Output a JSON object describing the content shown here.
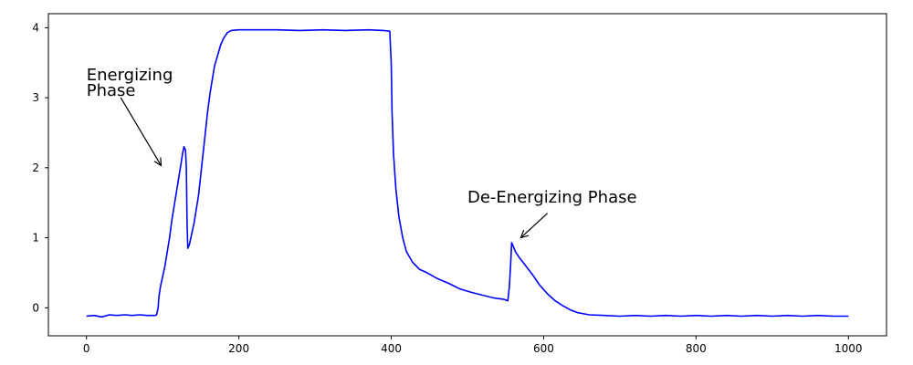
{
  "chart_data": {
    "type": "line",
    "title": "",
    "xlabel": "",
    "ylabel": "",
    "xlim": [
      -50,
      1050
    ],
    "ylim": [
      -0.4,
      4.2
    ],
    "x_ticks": [
      0,
      200,
      400,
      600,
      800,
      1000
    ],
    "x_tick_labels": [
      "0",
      "200",
      "400",
      "600",
      "800",
      "1000"
    ],
    "y_ticks": [
      0,
      1,
      2,
      3,
      4
    ],
    "y_tick_labels": [
      "0",
      "1",
      "2",
      "3",
      "4"
    ],
    "grid": false,
    "series": [
      {
        "color": "#0000ff",
        "points": [
          [
            0,
            -0.12
          ],
          [
            10,
            -0.11
          ],
          [
            20,
            -0.13
          ],
          [
            30,
            -0.1
          ],
          [
            40,
            -0.11
          ],
          [
            50,
            -0.1
          ],
          [
            60,
            -0.11
          ],
          [
            70,
            -0.1
          ],
          [
            80,
            -0.11
          ],
          [
            90,
            -0.11
          ],
          [
            92,
            -0.1
          ],
          [
            94,
            0.0
          ],
          [
            95,
            0.15
          ],
          [
            97,
            0.3
          ],
          [
            100,
            0.45
          ],
          [
            103,
            0.6
          ],
          [
            106,
            0.8
          ],
          [
            109,
            1.0
          ],
          [
            112,
            1.25
          ],
          [
            115,
            1.45
          ],
          [
            118,
            1.65
          ],
          [
            121,
            1.85
          ],
          [
            124,
            2.05
          ],
          [
            126,
            2.2
          ],
          [
            128,
            2.3
          ],
          [
            130,
            2.25
          ],
          [
            131,
            2.0
          ],
          [
            132,
            1.2
          ],
          [
            133,
            0.85
          ],
          [
            135,
            0.9
          ],
          [
            138,
            1.05
          ],
          [
            141,
            1.2
          ],
          [
            144,
            1.4
          ],
          [
            147,
            1.6
          ],
          [
            150,
            1.9
          ],
          [
            153,
            2.2
          ],
          [
            156,
            2.5
          ],
          [
            159,
            2.8
          ],
          [
            162,
            3.05
          ],
          [
            165,
            3.25
          ],
          [
            168,
            3.45
          ],
          [
            172,
            3.6
          ],
          [
            176,
            3.75
          ],
          [
            180,
            3.85
          ],
          [
            185,
            3.93
          ],
          [
            190,
            3.96
          ],
          [
            200,
            3.97
          ],
          [
            220,
            3.97
          ],
          [
            250,
            3.97
          ],
          [
            280,
            3.96
          ],
          [
            310,
            3.97
          ],
          [
            340,
            3.96
          ],
          [
            370,
            3.97
          ],
          [
            390,
            3.96
          ],
          [
            398,
            3.95
          ],
          [
            400,
            3.5
          ],
          [
            401,
            2.8
          ],
          [
            403,
            2.2
          ],
          [
            406,
            1.7
          ],
          [
            410,
            1.3
          ],
          [
            415,
            1.0
          ],
          [
            420,
            0.8
          ],
          [
            428,
            0.65
          ],
          [
            437,
            0.55
          ],
          [
            447,
            0.5
          ],
          [
            460,
            0.42
          ],
          [
            475,
            0.35
          ],
          [
            490,
            0.27
          ],
          [
            505,
            0.22
          ],
          [
            520,
            0.18
          ],
          [
            535,
            0.14
          ],
          [
            548,
            0.12
          ],
          [
            553,
            0.1
          ],
          [
            555,
            0.3
          ],
          [
            557,
            0.7
          ],
          [
            558,
            0.93
          ],
          [
            560,
            0.88
          ],
          [
            563,
            0.8
          ],
          [
            568,
            0.72
          ],
          [
            575,
            0.62
          ],
          [
            585,
            0.48
          ],
          [
            595,
            0.32
          ],
          [
            605,
            0.2
          ],
          [
            615,
            0.1
          ],
          [
            625,
            0.03
          ],
          [
            635,
            -0.03
          ],
          [
            645,
            -0.07
          ],
          [
            660,
            -0.1
          ],
          [
            680,
            -0.11
          ],
          [
            700,
            -0.12
          ],
          [
            720,
            -0.11
          ],
          [
            740,
            -0.12
          ],
          [
            760,
            -0.11
          ],
          [
            780,
            -0.12
          ],
          [
            800,
            -0.11
          ],
          [
            820,
            -0.12
          ],
          [
            840,
            -0.11
          ],
          [
            860,
            -0.12
          ],
          [
            880,
            -0.11
          ],
          [
            900,
            -0.12
          ],
          [
            920,
            -0.11
          ],
          [
            940,
            -0.12
          ],
          [
            960,
            -0.11
          ],
          [
            980,
            -0.12
          ],
          [
            1000,
            -0.12
          ]
        ]
      }
    ],
    "annotations": [
      {
        "lines": [
          "Energizing",
          "Phase"
        ],
        "text_x": 0,
        "text_y": 3.25,
        "arrow_from": [
          45,
          3.0
        ],
        "arrow_to": [
          98,
          2.03
        ]
      },
      {
        "lines": [
          "De-Energizing Phase"
        ],
        "text_x": 500,
        "text_y": 1.5,
        "arrow_from": [
          605,
          1.35
        ],
        "arrow_to": [
          570,
          1.0
        ]
      }
    ]
  }
}
